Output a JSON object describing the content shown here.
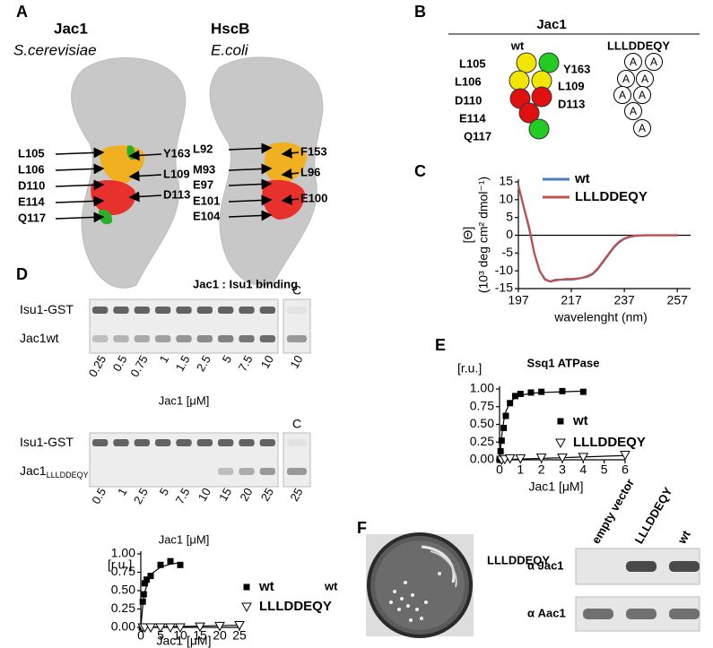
{
  "panels": {
    "A": {
      "label": "A",
      "structures": [
        {
          "name": "Jac1",
          "organism": "S.cerevisiae",
          "left": [
            "L105",
            "L106",
            "D110",
            "E114",
            "Q117"
          ],
          "right": [
            "Y163",
            "L109",
            "D113"
          ]
        },
        {
          "name": "HscB",
          "organism": "E.coli",
          "left": [
            "L92",
            "M93",
            "E97",
            "E101",
            "E104"
          ],
          "right": [
            "F153",
            "L96",
            "E100"
          ]
        }
      ]
    },
    "B": {
      "label": "B",
      "title": "Jac1",
      "wt_label": "wt",
      "mutant_label": "LLLDDEQY",
      "alanine": "A",
      "residues": [
        {
          "name": "L105",
          "color": "#f2e600"
        },
        {
          "name": "Y163",
          "color": "#22cc22"
        },
        {
          "name": "L106",
          "color": "#f2e600"
        },
        {
          "name": "L109",
          "color": "#f2e600"
        },
        {
          "name": "D110",
          "color": "#e01010"
        },
        {
          "name": "D113",
          "color": "#e01010"
        },
        {
          "name": "E114",
          "color": "#e01010"
        },
        {
          "name": "Q117",
          "color": "#22cc22"
        }
      ]
    },
    "C": {
      "label": "C"
    },
    "D": {
      "label": "D",
      "title": "Jac1 : Isu1 binding",
      "gels": [
        {
          "rows": [
            {
              "label": "Isu1-GST"
            },
            {
              "label": "Jac1wt"
            }
          ],
          "lanes": [
            "0.25",
            "0.5",
            "0.75",
            "1",
            "1.5",
            "2.5",
            "5",
            "7.5",
            "10"
          ],
          "control_label": "C",
          "control_lane": "10",
          "xlabel": "Jac1 [μM]"
        },
        {
          "rows": [
            {
              "label": "Isu1-GST"
            },
            {
              "label": "Jac1",
              "subscript": "LLLDDEQY"
            }
          ],
          "lanes": [
            "0.5",
            "1",
            "2.5",
            "5",
            "7.5",
            "10",
            "15",
            "20",
            "25"
          ],
          "control_label": "C",
          "control_lane": "25",
          "xlabel": "Jac1 [μM]"
        }
      ]
    },
    "E": {
      "label": "E"
    },
    "F": {
      "label": "F",
      "plate_left": "wt",
      "plate_right": "LLLDDEQY",
      "blot": {
        "columns": [
          "empty vector",
          "LLLDDEQY",
          "wt"
        ],
        "rows": [
          "α Jac1",
          "α Aac1"
        ]
      }
    }
  },
  "chart_data": [
    {
      "type": "line",
      "xlabel": "wavelenght (nm)",
      "ylabel": "[Θ]",
      "ylabel_units": "(10³ deg cm² dmol⁻¹)",
      "x": [
        197,
        199,
        201,
        203,
        205,
        207,
        209,
        211,
        213,
        215,
        217,
        219,
        221,
        223,
        225,
        227,
        229,
        231,
        233,
        235,
        237,
        239,
        241,
        245,
        250,
        257
      ],
      "xlim": [
        197,
        262
      ],
      "xticks": [
        197,
        217,
        237,
        257
      ],
      "ylim": [
        -15,
        15
      ],
      "yticks": [
        -15,
        -10,
        -5,
        0,
        5,
        10,
        15
      ],
      "zero_line": true,
      "legend": "upper right",
      "series": [
        {
          "name": "wt",
          "color": "#4a7ebb",
          "values": [
            14,
            8,
            2,
            -5,
            -10,
            -12.5,
            -13,
            -12.5,
            -12.5,
            -12.5,
            -12.5,
            -12.3,
            -12,
            -11.7,
            -11,
            -9.5,
            -7.5,
            -5.5,
            -3.5,
            -2,
            -1,
            -0.5,
            -0.2,
            0,
            0,
            0
          ]
        },
        {
          "name": "LLLDDEQY",
          "color": "#c0504d",
          "values": [
            14,
            8,
            2.5,
            -5,
            -10,
            -12.3,
            -13,
            -12.7,
            -12.5,
            -12.3,
            -12.3,
            -12.2,
            -12,
            -11.5,
            -10.8,
            -9.3,
            -7.3,
            -5.3,
            -3.3,
            -1.8,
            -0.9,
            -0.4,
            -0.1,
            0,
            0,
            0
          ]
        }
      ]
    },
    {
      "type": "scatter",
      "title": "Ssq1 ATPase",
      "xlabel": "Jac1 [μM]",
      "ylabel": "[r.u.]",
      "legend": "right",
      "xlim": [
        0,
        6
      ],
      "xticks": [
        0,
        1,
        2,
        3,
        4,
        5,
        6
      ],
      "ylim": [
        0,
        1
      ],
      "yticks": [
        {
          "value": 0,
          "label": "0.00"
        },
        {
          "value": 0.25,
          "label": "0.25"
        },
        {
          "value": 0.5,
          "label": "0.50"
        },
        {
          "value": 0.75,
          "label": "0.75"
        },
        {
          "value": 1,
          "label": "1.00"
        }
      ],
      "series": [
        {
          "name": "wt",
          "color": "#000000",
          "marker": "square",
          "x": [
            0,
            0.05,
            0.1,
            0.2,
            0.3,
            0.5,
            0.75,
            1,
            1.5,
            2,
            3,
            4
          ],
          "values": [
            0,
            0.12,
            0.27,
            0.45,
            0.62,
            0.8,
            0.9,
            0.93,
            0.95,
            0.96,
            0.97,
            0.96
          ],
          "fit": {
            "x": [
              0,
              0.1,
              0.2,
              0.3,
              0.5,
              0.75,
              1,
              1.5,
              2,
              3,
              4
            ],
            "values": [
              0,
              0.33,
              0.55,
              0.68,
              0.81,
              0.88,
              0.91,
              0.94,
              0.95,
              0.96,
              0.97
            ]
          }
        },
        {
          "name": "LLLDDEQY",
          "color": "#000000",
          "marker": "triangle-down",
          "x": [
            0.1,
            0.25,
            0.5,
            1,
            2,
            3,
            4,
            6
          ],
          "values": [
            0,
            0.01,
            0.02,
            0.02,
            0.03,
            0.03,
            0.04,
            0.07
          ],
          "fit": {
            "x": [
              0,
              6
            ],
            "values": [
              0,
              0.06
            ]
          }
        }
      ]
    },
    {
      "type": "scatter",
      "xlabel": "Jac1 [μM]",
      "ylabel": "[r.u.]",
      "legend": "right",
      "xlim": [
        0,
        25
      ],
      "xticks": [
        0,
        5,
        10,
        15,
        20,
        25
      ],
      "ylim": [
        0,
        1
      ],
      "yticks": [
        {
          "value": 0,
          "label": "0.00"
        },
        {
          "value": 0.25,
          "label": "0.25"
        },
        {
          "value": 0.5,
          "label": "0.50"
        },
        {
          "value": 0.75,
          "label": "0.75"
        },
        {
          "value": 1,
          "label": "1.00"
        }
      ],
      "series": [
        {
          "name": "wt",
          "color": "#000000",
          "marker": "square",
          "x": [
            0.25,
            0.5,
            0.75,
            1,
            1.5,
            2.5,
            5,
            7.5,
            10
          ],
          "values": [
            0,
            0.35,
            0.45,
            0.6,
            0.65,
            0.7,
            0.85,
            0.9,
            0.85
          ],
          "fit": {
            "x": [
              0,
              0.5,
              1,
              2,
              3,
              5,
              7.5,
              10
            ],
            "values": [
              0,
              0.3,
              0.48,
              0.65,
              0.74,
              0.82,
              0.86,
              0.88
            ]
          }
        },
        {
          "name": "LLLDDEQY",
          "color": "#000000",
          "marker": "triangle-down",
          "x": [
            0.5,
            1,
            2.5,
            5,
            7.5,
            10,
            15,
            20,
            25
          ],
          "values": [
            0,
            0,
            0,
            0,
            0,
            0,
            0.01,
            0.02,
            0.03
          ],
          "fit": {
            "x": [
              0,
              25
            ],
            "values": [
              0,
              0.03
            ]
          }
        }
      ]
    }
  ]
}
